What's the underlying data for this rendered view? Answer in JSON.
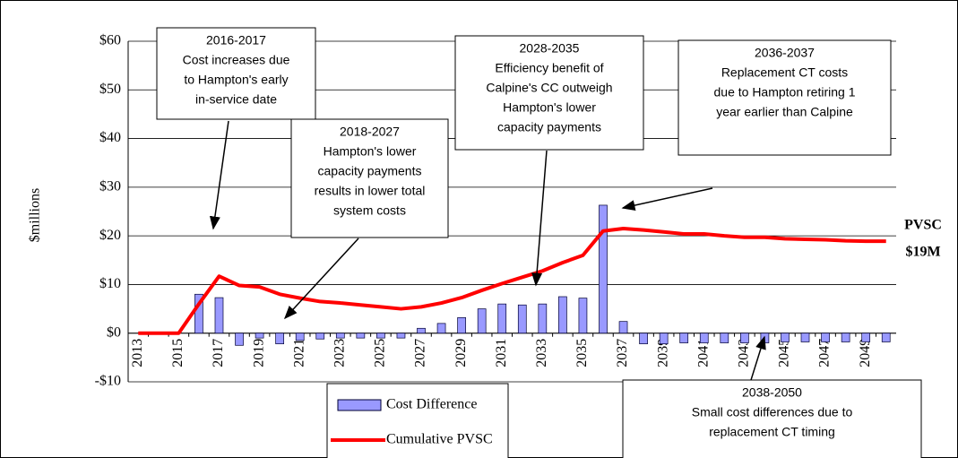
{
  "chart_data": {
    "type": "bar_line",
    "ylabel": "$millions",
    "categories": [
      "2013",
      null,
      "2015",
      null,
      "2017",
      null,
      "2019",
      null,
      "2021",
      null,
      "2023",
      null,
      "2025",
      null,
      "2027",
      null,
      "2029",
      null,
      "2031",
      null,
      "2033",
      null,
      "2035",
      null,
      "2037",
      null,
      "2039",
      null,
      "2041",
      null,
      "2043",
      null,
      "2045",
      null,
      "2047",
      null,
      "2049",
      null
    ],
    "series": [
      {
        "name": "Cost Difference",
        "type": "bar",
        "color": "#9999ff",
        "values": [
          0,
          0,
          0,
          8,
          7.3,
          -2.5,
          -1,
          -2.2,
          -1.5,
          -1.2,
          -1,
          -1,
          -1,
          -1,
          1,
          2,
          3.2,
          5,
          6,
          5.8,
          6,
          7.5,
          7.2,
          26.3,
          2.4,
          -2.2,
          -2.2,
          -2,
          -2,
          -2,
          -2,
          -2,
          -1.8,
          -1.8,
          -1.8,
          -1.8,
          -1.8,
          -1.8
        ]
      },
      {
        "name": "Cumulative PVSC",
        "type": "line",
        "color": "#ff0000",
        "values": [
          0,
          0,
          0,
          6,
          11.7,
          9.8,
          9.5,
          8,
          7.2,
          6.5,
          6.2,
          5.8,
          5.4,
          5,
          5.4,
          6.2,
          7.3,
          8.8,
          10.2,
          11.5,
          12.8,
          14.5,
          16,
          21,
          21.5,
          21.2,
          20.8,
          20.4,
          20.4,
          20,
          19.7,
          19.7,
          19.4,
          19.3,
          19.2,
          19,
          18.9,
          18.9
        ]
      }
    ],
    "ylim": [
      -10,
      60
    ],
    "yticks": [
      {
        "value": -10,
        "label": "-$10"
      },
      {
        "value": 0,
        "label": "$0"
      },
      {
        "value": 10,
        "label": "$10"
      },
      {
        "value": 20,
        "label": "$20"
      },
      {
        "value": 30,
        "label": "$30"
      },
      {
        "value": 40,
        "label": "$40"
      },
      {
        "value": 50,
        "label": "$50"
      },
      {
        "value": 60,
        "label": "$60"
      }
    ],
    "grid": true,
    "legend": "bottom",
    "end_label": [
      "PVSC",
      "$19M"
    ],
    "annotations": [
      {
        "lines": [
          "2016-2017",
          "Cost increases due",
          "to Hampton's early",
          "in-service date"
        ]
      },
      {
        "lines": [
          "2018-2027",
          "Hampton's lower",
          "capacity payments",
          "results in lower total",
          "system costs"
        ]
      },
      {
        "lines": [
          "2028-2035",
          "Efficiency benefit of",
          "Calpine's CC outweigh",
          "Hampton's lower",
          "capacity payments"
        ]
      },
      {
        "lines": [
          "2036-2037",
          "Replacement CT costs",
          "due to Hampton retiring 1",
          "year earlier than Calpine"
        ]
      },
      {
        "lines": [
          "2038-2050",
          "Small cost differences due to",
          "replacement CT timing"
        ]
      }
    ]
  }
}
